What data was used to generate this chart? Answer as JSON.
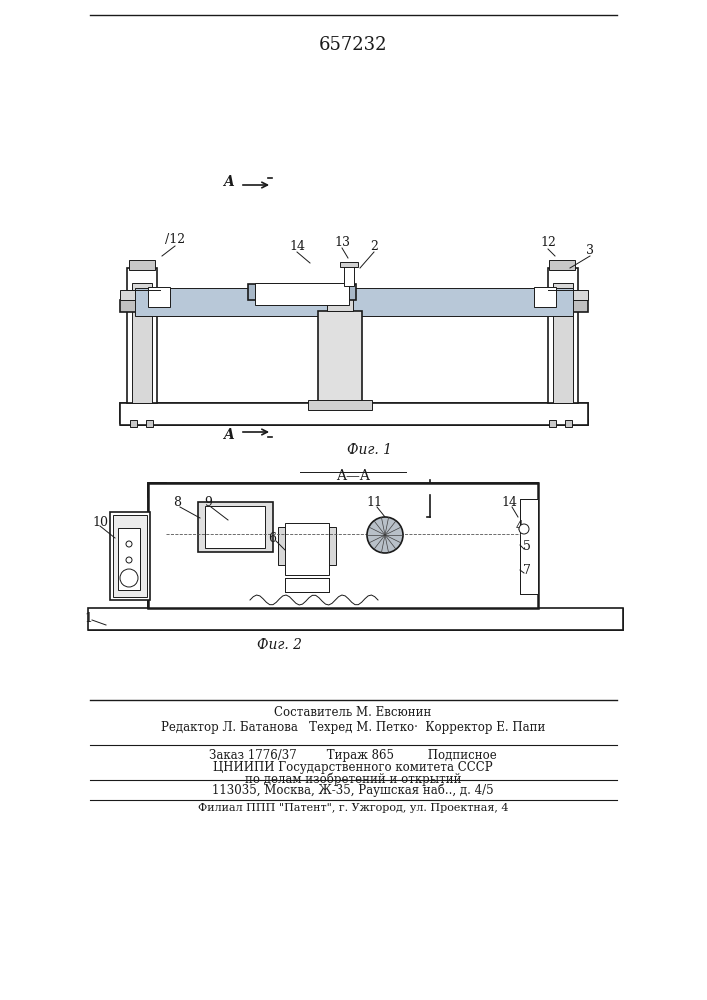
{
  "patent_number": "657232",
  "fig1_caption": "Фиг. 1",
  "fig2_caption": "Фиг. 2",
  "bg_color": "#ffffff",
  "line_color": "#1a1a1a",
  "footer_lines": [
    "Составитель М. Евсюнин",
    "Редактор Л. Батанова   Техред М. Петко·  Корректор Е. Папи",
    "Заказ 1776/37        Тираж 865         Подписное",
    "ЦНИИПИ Государственного комитета СССР",
    "по делам изобретений и открытий",
    "113035, Москва, Ж-35, Раушская наб.., д. 4/5",
    "Филиал ППП \"Патент\", г. Ужгород, ул. Проектная, 4"
  ]
}
